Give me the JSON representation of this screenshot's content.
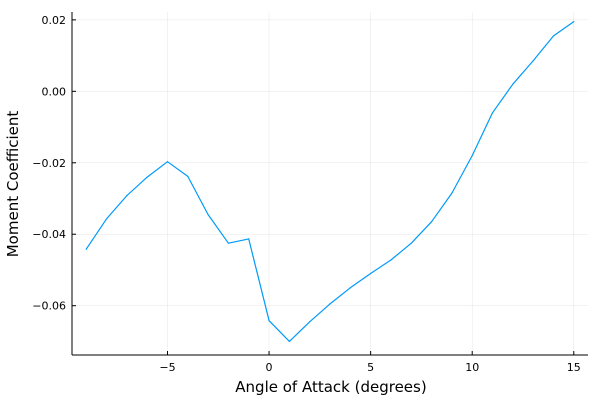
{
  "chart_data": {
    "type": "line",
    "title": "",
    "xlabel": "Angle of Attack (degrees)",
    "ylabel": "Moment Coefficient",
    "xlim": [
      -9.7,
      15.7
    ],
    "ylim": [
      -0.0738,
      0.0222
    ],
    "xticks": [
      -5,
      0,
      5,
      10,
      15
    ],
    "xtick_labels": [
      "−5",
      "0",
      "5",
      "10",
      "15"
    ],
    "yticks": [
      -0.06,
      -0.04,
      -0.02,
      0.0,
      0.02
    ],
    "ytick_labels": [
      "−0.06",
      "−0.04",
      "−0.02",
      "0.00",
      "0.02"
    ],
    "grid": true,
    "legend": "none",
    "series": [
      {
        "color": "#009AFA",
        "x": [
          -9,
          -8,
          -7,
          -6,
          -5,
          -4,
          -3,
          -2,
          -1,
          0,
          1,
          2,
          3,
          4,
          5,
          6,
          7,
          8,
          9,
          10,
          11,
          12,
          13,
          14,
          15
        ],
        "y": [
          -0.0442,
          -0.0357,
          -0.0292,
          -0.024,
          -0.0197,
          -0.0238,
          -0.0345,
          -0.0425,
          -0.0413,
          -0.0642,
          -0.07,
          -0.0645,
          -0.0595,
          -0.055,
          -0.051,
          -0.0472,
          -0.0425,
          -0.0365,
          -0.0285,
          -0.018,
          -0.006,
          0.002,
          0.0085,
          0.0155,
          0.0195
        ]
      }
    ]
  }
}
